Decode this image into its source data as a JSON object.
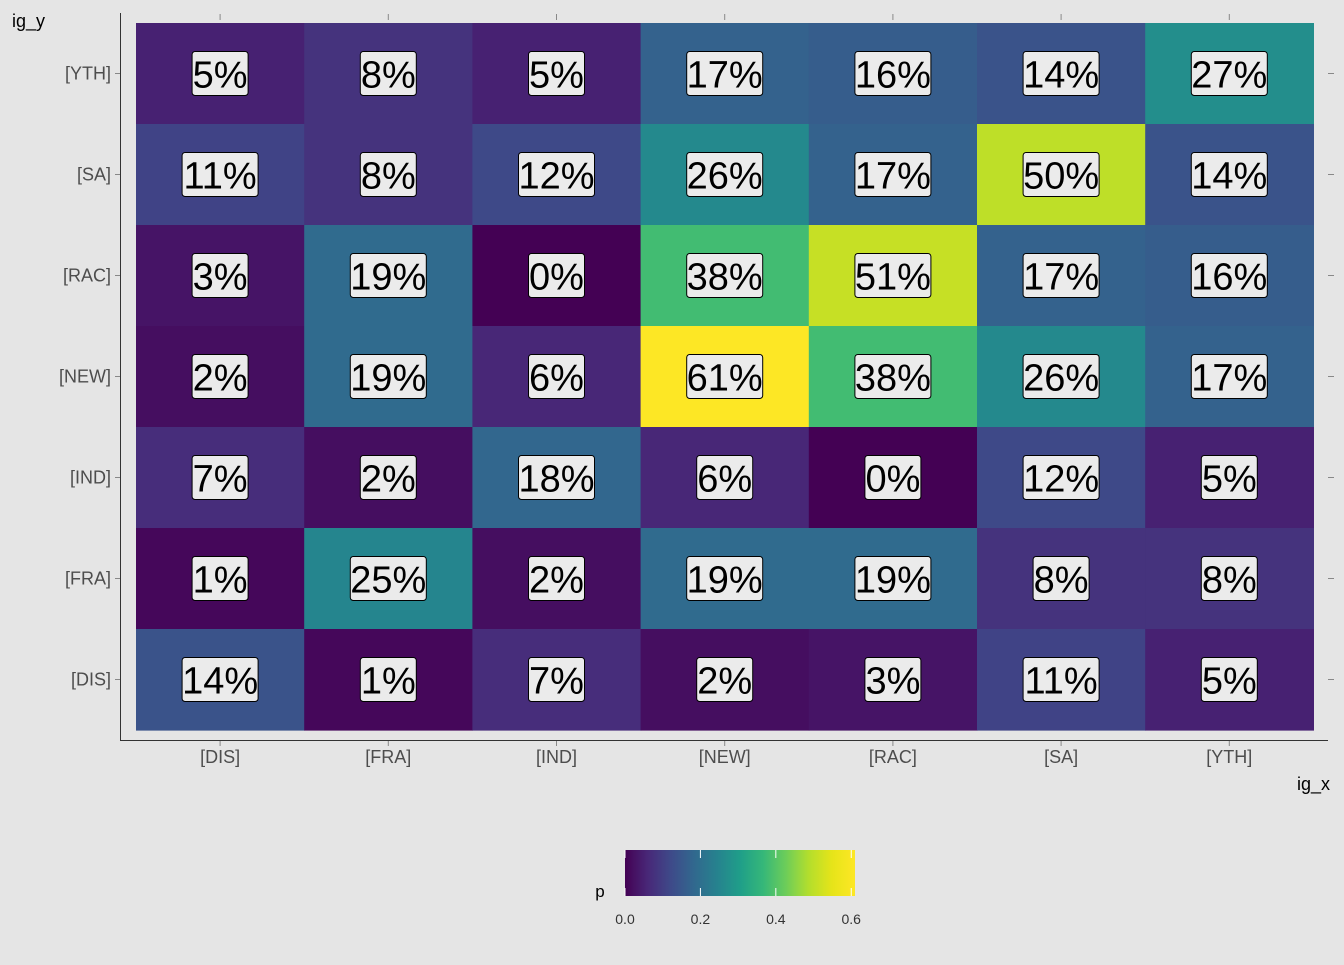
{
  "chart_data": {
    "type": "heatmap",
    "xlabel": "ig_x",
    "ylabel": "ig_y",
    "x_categories": [
      "[DIS]",
      "[FRA]",
      "[IND]",
      "[NEW]",
      "[RAC]",
      "[SA]",
      "[YTH]"
    ],
    "y_categories_top_to_bottom": [
      "[YTH]",
      "[SA]",
      "[RAC]",
      "[NEW]",
      "[IND]",
      "[FRA]",
      "[DIS]"
    ],
    "values": [
      [
        0.05,
        0.08,
        0.05,
        0.17,
        0.16,
        0.14,
        0.27
      ],
      [
        0.11,
        0.08,
        0.12,
        0.26,
        0.17,
        0.5,
        0.14
      ],
      [
        0.03,
        0.19,
        0.0,
        0.38,
        0.51,
        0.17,
        0.16
      ],
      [
        0.02,
        0.19,
        0.06,
        0.61,
        0.38,
        0.26,
        0.17
      ],
      [
        0.07,
        0.02,
        0.18,
        0.06,
        0.0,
        0.12,
        0.05
      ],
      [
        0.01,
        0.25,
        0.02,
        0.19,
        0.19,
        0.08,
        0.08
      ],
      [
        0.14,
        0.01,
        0.07,
        0.02,
        0.03,
        0.11,
        0.05
      ]
    ],
    "labels": [
      [
        "5%",
        "8%",
        "5%",
        "17%",
        "16%",
        "14%",
        "27%"
      ],
      [
        "11%",
        "8%",
        "12%",
        "26%",
        "17%",
        "50%",
        "14%"
      ],
      [
        "3%",
        "19%",
        "0%",
        "38%",
        "51%",
        "17%",
        "16%"
      ],
      [
        "2%",
        "19%",
        "6%",
        "61%",
        "38%",
        "26%",
        "17%"
      ],
      [
        "7%",
        "2%",
        "18%",
        "6%",
        "0%",
        "12%",
        "5%"
      ],
      [
        "1%",
        "25%",
        "2%",
        "19%",
        "19%",
        "8%",
        "8%"
      ],
      [
        "14%",
        "1%",
        "7%",
        "2%",
        "3%",
        "11%",
        "5%"
      ]
    ],
    "colorscale": "viridis",
    "legend": {
      "title": "p",
      "position": "bottom",
      "range": [
        0,
        0.61
      ],
      "ticks": [
        0.0,
        0.2,
        0.4,
        0.6
      ],
      "tick_labels": [
        "0.0",
        "0.2",
        "0.4",
        "0.6"
      ]
    },
    "grid": false
  }
}
